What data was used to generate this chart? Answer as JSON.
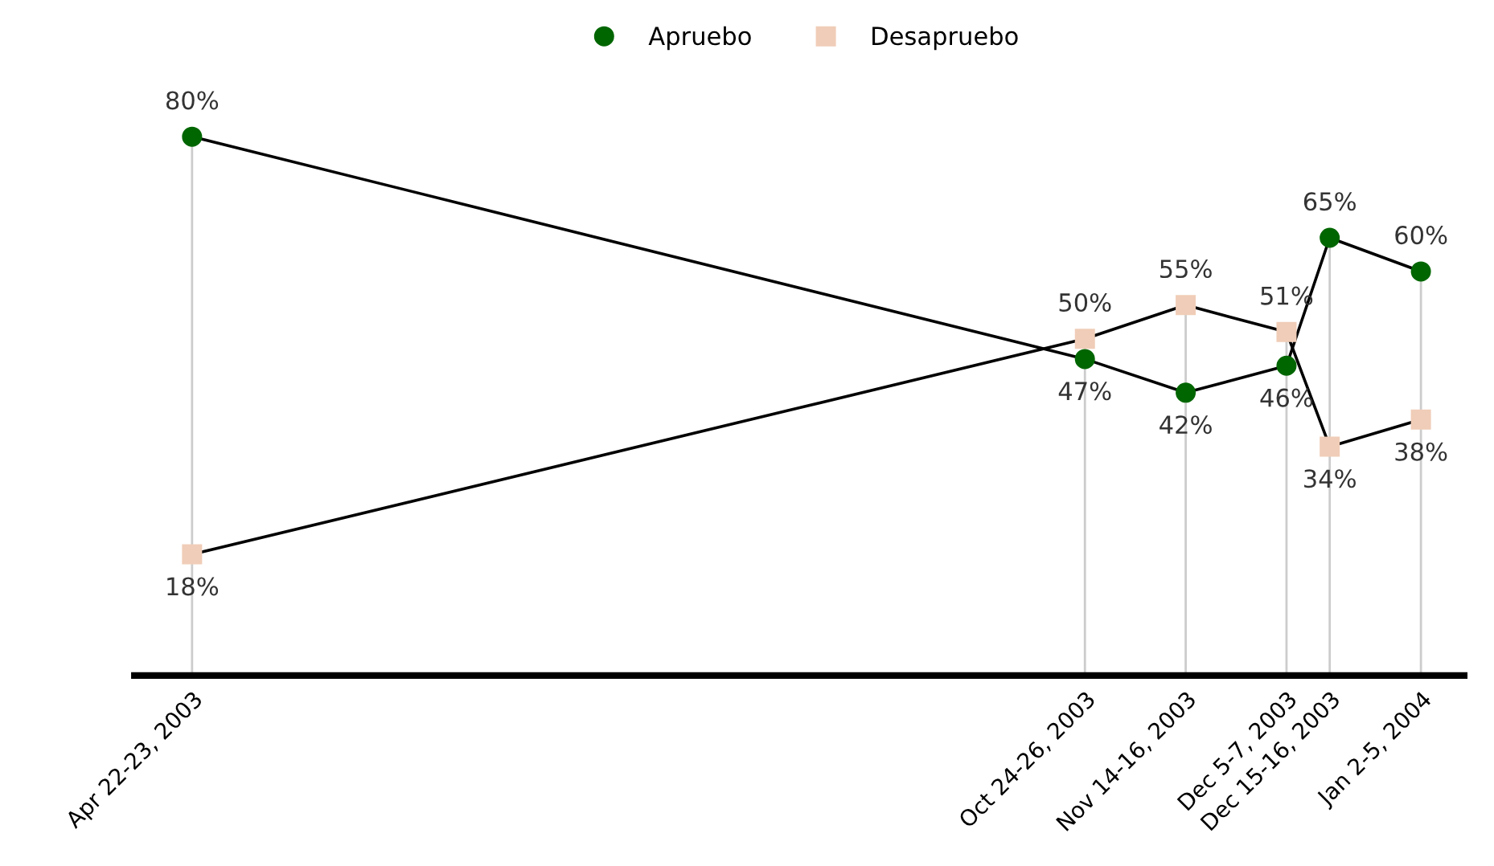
{
  "chart_data": {
    "type": "line",
    "x": [
      "2003-04-22",
      "2003-10-25",
      "2003-11-15",
      "2003-12-06",
      "2003-12-15",
      "2004-01-03"
    ],
    "xticks": [
      {
        "value": "2003-04-22",
        "label": "Apr 22-23, 2003"
      },
      {
        "value": "2003-10-25",
        "label": "Oct 24-26, 2003"
      },
      {
        "value": "2003-11-15",
        "label": "Nov 14-16, 2003"
      },
      {
        "value": "2003-12-06",
        "label": "Dec 5-7, 2003"
      },
      {
        "value": "2003-12-15",
        "label": "Dec 15-16, 2003"
      },
      {
        "value": "2004-01-03",
        "label": "Jan 2-5, 2004"
      }
    ],
    "xlim": [
      "2003-04-10",
      "2004-01-12"
    ],
    "tick_labels": "x",
    "series": [
      {
        "name": "Apruebo",
        "color": "#006600",
        "marker": "circle",
        "values": [
          80,
          47,
          42,
          46,
          65,
          60
        ],
        "value_labels": [
          "80%",
          "47%",
          "42%",
          "46%",
          "65%",
          "60%"
        ]
      },
      {
        "name": "Desapruebo",
        "color": "#f0cdb8",
        "marker": "square",
        "values": [
          18,
          50,
          55,
          51,
          34,
          38
        ],
        "value_labels": [
          "18%",
          "50%",
          "55%",
          "51%",
          "34%",
          "38%"
        ]
      }
    ],
    "grid": "x",
    "legend": "top"
  }
}
